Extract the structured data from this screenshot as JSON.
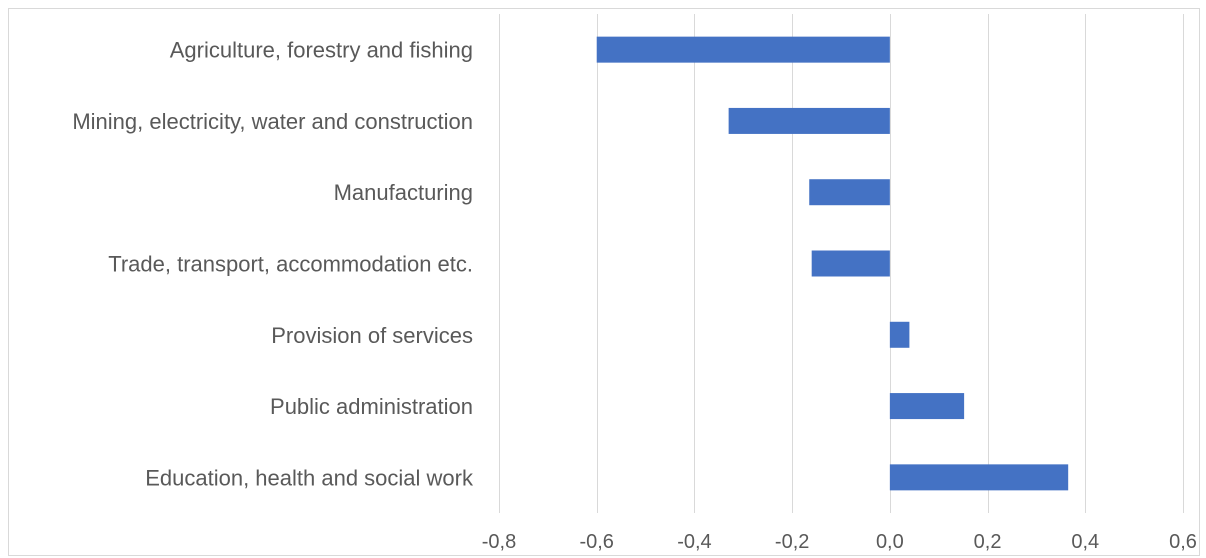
{
  "chart_data": {
    "type": "bar",
    "orientation": "horizontal",
    "categories": [
      "Agriculture, forestry and fishing",
      "Mining, electricity, water and construction",
      "Manufacturing",
      "Trade, transport, accommodation etc.",
      "Provision of services",
      "Public administration",
      "Education, health and social work"
    ],
    "values": [
      -0.6,
      -0.33,
      -0.165,
      -0.16,
      0.04,
      0.152,
      0.365
    ],
    "xlim": [
      -0.8,
      0.6
    ],
    "x_ticks": [
      -0.8,
      -0.6,
      -0.4,
      -0.2,
      0.0,
      0.2,
      0.4,
      0.6
    ],
    "x_tick_labels": [
      "-0,8",
      "-0,6",
      "-0,4",
      "-0,2",
      "0,0",
      "0,2",
      "0,4",
      "0,6"
    ],
    "title": "",
    "xlabel": "",
    "ylabel": "",
    "grid": "vertical",
    "legend": "none",
    "bar_color": "#4472c4",
    "gridline_color": "#d9d9d9",
    "text_color": "#595959"
  }
}
